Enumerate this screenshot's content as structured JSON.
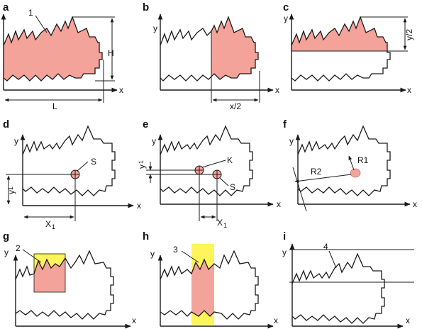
{
  "panels": {
    "a": {
      "letter": "a",
      "callout": "1",
      "height_label": "H",
      "length_label": "L",
      "x_axis": "x"
    },
    "b": {
      "letter": "b",
      "y_axis": "y",
      "x_axis": "x",
      "half_label": "x/2"
    },
    "c": {
      "letter": "c",
      "y_axis": "y",
      "x_axis": "x",
      "half_label": "y/2"
    },
    "d": {
      "letter": "d",
      "y_axis": "y",
      "x_axis": "x",
      "point": "S",
      "x_coord": "X",
      "y_coord": "y",
      "sub": "1"
    },
    "e": {
      "letter": "e",
      "y_axis": "y",
      "x_axis": "x",
      "point_k": "K",
      "point_s": "S",
      "x_coord": "X",
      "y_coord": "y",
      "sub": "1"
    },
    "f": {
      "letter": "f",
      "y_axis": "y",
      "x_axis": "x",
      "r1": "R1",
      "r2": "R2"
    },
    "g": {
      "letter": "g",
      "y_axis": "y",
      "x_axis": "x",
      "callout": "2"
    },
    "h": {
      "letter": "h",
      "y_axis": "y",
      "x_axis": "x",
      "callout": "3"
    },
    "i": {
      "letter": "i",
      "y_axis": "y",
      "x_axis": "x",
      "callout": "4"
    }
  },
  "colors": {
    "region": "#f4a39a",
    "highlight": "#fff45a",
    "ink": "#1a1a1a"
  }
}
